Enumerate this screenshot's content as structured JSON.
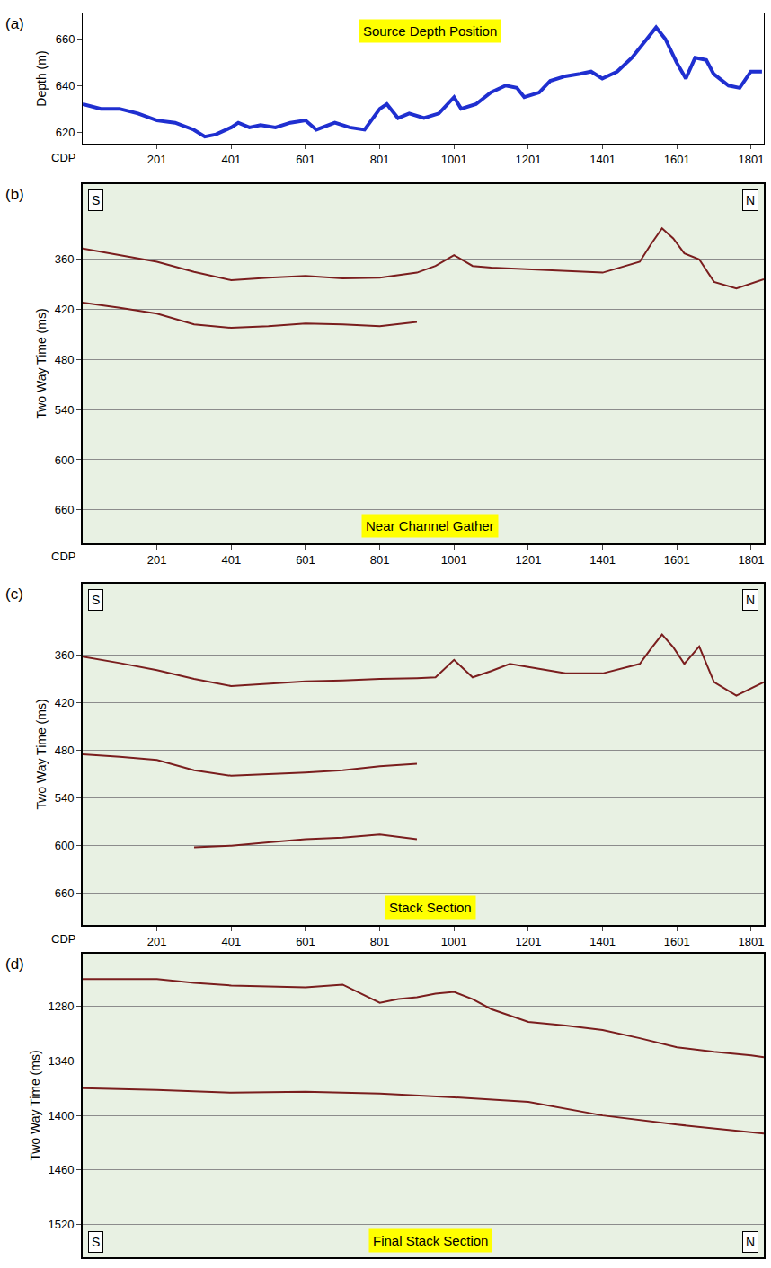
{
  "chart_data": [
    {
      "type": "line",
      "panel_label": "(a)",
      "title": "Source Depth Position",
      "x_label": "CDP",
      "y_label": "Depth (m)",
      "xlim": [
        1,
        1835
      ],
      "xticks": [
        201,
        401,
        601,
        801,
        1001,
        1201,
        1401,
        1601,
        1801
      ],
      "ylim": [
        615,
        671
      ],
      "yticks": [
        620,
        640,
        660
      ],
      "grid": false,
      "series": [
        {
          "color": "#1f2fd0",
          "x": [
            1,
            50,
            100,
            150,
            201,
            250,
            300,
            330,
            360,
            401,
            420,
            450,
            480,
            520,
            560,
            601,
            630,
            680,
            720,
            760,
            801,
            820,
            850,
            880,
            920,
            960,
            1001,
            1020,
            1060,
            1100,
            1140,
            1170,
            1190,
            1230,
            1260,
            1300,
            1340,
            1370,
            1400,
            1440,
            1480,
            1520,
            1545,
            1570,
            1600,
            1625,
            1650,
            1680,
            1700,
            1740,
            1770,
            1800,
            1830
          ],
          "values": [
            632,
            630,
            630,
            628,
            625,
            624,
            621,
            618,
            619,
            622,
            624,
            622,
            623,
            622,
            624,
            625,
            621,
            624,
            622,
            621,
            630,
            632,
            626,
            628,
            626,
            628,
            635,
            630,
            632,
            637,
            640,
            639,
            635,
            637,
            642,
            644,
            645,
            646,
            643,
            646,
            652,
            660,
            665,
            660,
            650,
            643,
            652,
            651,
            645,
            640,
            639,
            646,
            646
          ]
        }
      ]
    },
    {
      "type": "line",
      "panel_label": "(b)",
      "title": "Near Channel Gather",
      "annotations": [
        "S",
        "N"
      ],
      "x_label": "CDP",
      "y_label": "Two Way Time (ms)",
      "xlim": [
        1,
        1835
      ],
      "xticks": [
        201,
        401,
        601,
        801,
        1001,
        1201,
        1401,
        1601,
        1801
      ],
      "ylim": [
        700,
        270
      ],
      "yticks": [
        360,
        420,
        480,
        540,
        600,
        660
      ],
      "grid": true,
      "series": [
        {
          "color": "#7a1e1e",
          "x": [
            1,
            101,
            201,
            301,
            401,
            501,
            601,
            701,
            801,
            901,
            951,
            1001,
            1051,
            1101,
            1201,
            1301,
            1401,
            1501,
            1531,
            1561,
            1591,
            1621,
            1661,
            1701,
            1761,
            1835
          ],
          "values": [
            347,
            355,
            363,
            375,
            385,
            382,
            380,
            383,
            382,
            376,
            368,
            355,
            368,
            370,
            372,
            374,
            376,
            363,
            342,
            323,
            335,
            353,
            360,
            387,
            395,
            384
          ]
        },
        {
          "color": "#7a1e1e",
          "x": [
            1,
            101,
            201,
            301,
            401,
            501,
            601,
            701,
            801,
            901
          ],
          "values": [
            412,
            418,
            425,
            438,
            442,
            440,
            437,
            438,
            440,
            435
          ]
        }
      ]
    },
    {
      "type": "line",
      "panel_label": "(c)",
      "title": "Stack Section",
      "annotations": [
        "S",
        "N"
      ],
      "x_label": "CDP",
      "y_label": "Two Way Time (ms)",
      "xlim": [
        1,
        1835
      ],
      "xticks": [
        201,
        401,
        601,
        801,
        1001,
        1201,
        1401,
        1601,
        1801
      ],
      "ylim": [
        700,
        270
      ],
      "yticks": [
        360,
        420,
        480,
        540,
        600,
        660
      ],
      "grid": true,
      "series": [
        {
          "color": "#7a1e1e",
          "x": [
            1,
            101,
            201,
            301,
            401,
            501,
            601,
            701,
            801,
            901,
            951,
            1001,
            1051,
            1101,
            1151,
            1201,
            1301,
            1401,
            1501,
            1531,
            1561,
            1591,
            1621,
            1661,
            1701,
            1761,
            1835
          ],
          "values": [
            362,
            370,
            379,
            390,
            399,
            396,
            393,
            392,
            390,
            389,
            388,
            366,
            388,
            380,
            371,
            375,
            383,
            383,
            371,
            352,
            334,
            350,
            371,
            349,
            394,
            411,
            394
          ]
        },
        {
          "color": "#7a1e1e",
          "x": [
            1,
            101,
            201,
            301,
            401,
            501,
            601,
            701,
            801,
            901
          ],
          "values": [
            485,
            488,
            492,
            505,
            512,
            510,
            508,
            505,
            500,
            497
          ]
        },
        {
          "color": "#7a1e1e",
          "x": [
            301,
            401,
            501,
            601,
            701,
            801,
            901
          ],
          "values": [
            602,
            600,
            596,
            592,
            590,
            586,
            592
          ]
        }
      ]
    },
    {
      "type": "line",
      "panel_label": "(d)",
      "title": "Final Stack Section",
      "annotations": [
        "S",
        "N"
      ],
      "y_label": "Two Way Time (ms)",
      "tick_labels": "y",
      "xlim": [
        1,
        1835
      ],
      "ylim": [
        1556,
        1222
      ],
      "yticks": [
        1280,
        1340,
        1400,
        1460,
        1520
      ],
      "grid": true,
      "series": [
        {
          "color": "#7a1e1e",
          "x": [
            1,
            101,
            201,
            301,
            401,
            501,
            601,
            701,
            801,
            851,
            901,
            951,
            1001,
            1051,
            1101,
            1201,
            1301,
            1401,
            1501,
            1601,
            1701,
            1801,
            1835
          ],
          "values": [
            1250,
            1250,
            1250,
            1254,
            1257,
            1258,
            1259,
            1256,
            1276,
            1272,
            1270,
            1266,
            1264,
            1272,
            1283,
            1297,
            1301,
            1306,
            1315,
            1325,
            1330,
            1334,
            1336
          ]
        },
        {
          "color": "#7a1e1e",
          "x": [
            1,
            201,
            401,
            601,
            801,
            1001,
            1201,
            1401,
            1601,
            1835
          ],
          "values": [
            1370,
            1372,
            1375,
            1374,
            1376,
            1380,
            1385,
            1400,
            1410,
            1420
          ]
        }
      ]
    }
  ]
}
